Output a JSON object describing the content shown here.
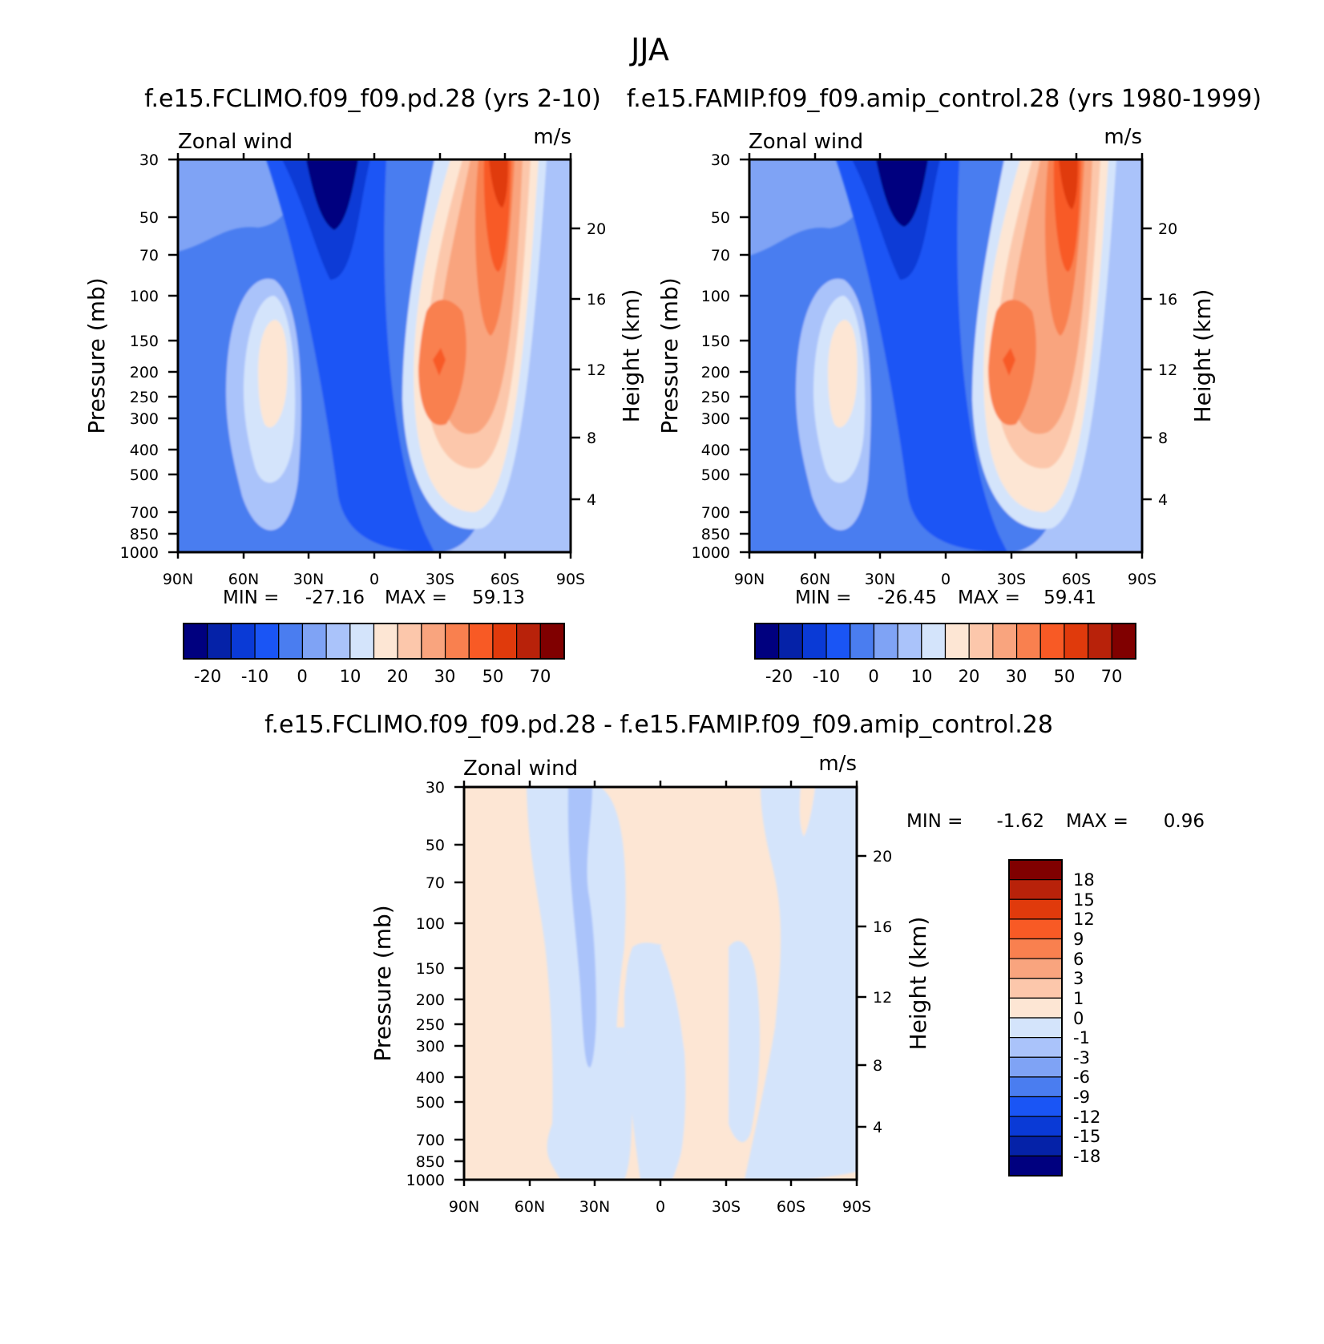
{
  "figure": {
    "season": "JJA"
  },
  "palette": {
    "top": [
      "#00007f",
      "#0522a8",
      "#0a3ad6",
      "#1a55f5",
      "#4a7df0",
      "#7fa3f5",
      "#aac3fa",
      "#d4e4fb",
      "#fde6d4",
      "#fcc7ab",
      "#f9a47e",
      "#f9804f",
      "#f85a25",
      "#e03a0c",
      "#b8220a",
      "#800000"
    ],
    "diff": [
      "#00007f",
      "#0522a8",
      "#0a3ad6",
      "#1a55f5",
      "#4a7df0",
      "#7fa3f5",
      "#aac3fa",
      "#d4e4fb",
      "#fde6d4",
      "#fcc7ab",
      "#f9a47e",
      "#f9804f",
      "#f85a25",
      "#e03a0c",
      "#b8220a",
      "#800000"
    ]
  },
  "chart_data": [
    {
      "type": "heatmap",
      "panel": "left",
      "title": "f.e15.FCLIMO.f09_f09.pd.28 (yrs 2-10)",
      "left_label": "Zonal wind",
      "right_label": "m/s",
      "xlabel": "",
      "ylabel": "Pressure (mb)",
      "y2label": "Height (km)",
      "xticks": [
        "90N",
        "60N",
        "30N",
        "0",
        "30S",
        "60S",
        "90S"
      ],
      "yticks": [
        "30",
        "50",
        "70",
        "100",
        "150",
        "200",
        "250",
        "300",
        "400",
        "500",
        "700",
        "850",
        "1000"
      ],
      "y2ticks": [
        "20",
        "16",
        "12",
        "8",
        "4"
      ],
      "stats": {
        "min_label": "MIN =",
        "min": "-27.16",
        "max_label": "MAX =",
        "max": "59.13"
      },
      "colorbar_labels": [
        "-20",
        "-10",
        "0",
        "10",
        "20",
        "30",
        "50",
        "70"
      ],
      "contour_levels": [
        -25,
        -20,
        -15,
        -10,
        -5,
        0,
        5,
        10,
        15,
        20,
        25,
        30,
        40,
        50,
        60,
        70
      ],
      "features": [
        {
          "name": "easterly stratospheric minimum near 20N",
          "lat": 20,
          "pressure": 30,
          "value": -27
        },
        {
          "name": "subtropical westerly jet near 30S",
          "lat": -30,
          "pressure": 200,
          "value": 40
        },
        {
          "name": "polar night jet near 60S",
          "lat": -60,
          "pressure": 30,
          "value": 59
        }
      ]
    },
    {
      "type": "heatmap",
      "panel": "right",
      "title": "f.e15.FAMIP.f09_f09.amip_control.28 (yrs 1980-1999)",
      "left_label": "Zonal wind",
      "right_label": "m/s",
      "xlabel": "",
      "ylabel": "Pressure (mb)",
      "y2label": "Height (km)",
      "xticks": [
        "90N",
        "60N",
        "30N",
        "0",
        "30S",
        "60S",
        "90S"
      ],
      "yticks": [
        "30",
        "50",
        "70",
        "100",
        "150",
        "200",
        "250",
        "300",
        "400",
        "500",
        "700",
        "850",
        "1000"
      ],
      "y2ticks": [
        "20",
        "16",
        "12",
        "8",
        "4"
      ],
      "stats": {
        "min_label": "MIN =",
        "min": "-26.45",
        "max_label": "MAX =",
        "max": "59.41"
      },
      "colorbar_labels": [
        "-20",
        "-10",
        "0",
        "10",
        "20",
        "30",
        "50",
        "70"
      ],
      "contour_levels": [
        -25,
        -20,
        -15,
        -10,
        -5,
        0,
        5,
        10,
        15,
        20,
        25,
        30,
        40,
        50,
        60,
        70
      ],
      "features": [
        {
          "name": "easterly stratospheric minimum near 20N",
          "lat": 20,
          "pressure": 30,
          "value": -26
        },
        {
          "name": "subtropical westerly jet near 30S",
          "lat": -30,
          "pressure": 200,
          "value": 40
        },
        {
          "name": "polar night jet near 60S",
          "lat": -60,
          "pressure": 30,
          "value": 59
        }
      ]
    },
    {
      "type": "heatmap",
      "panel": "difference",
      "title": "f.e15.FCLIMO.f09_f09.pd.28 - f.e15.FAMIP.f09_f09.amip_control.28",
      "left_label": "Zonal wind",
      "right_label": "m/s",
      "xlabel": "",
      "ylabel": "Pressure (mb)",
      "y2label": "Height (km)",
      "xticks": [
        "90N",
        "60N",
        "30N",
        "0",
        "30S",
        "60S",
        "90S"
      ],
      "yticks": [
        "30",
        "50",
        "70",
        "100",
        "150",
        "200",
        "250",
        "300",
        "400",
        "500",
        "700",
        "850",
        "1000"
      ],
      "y2ticks": [
        "20",
        "16",
        "12",
        "8",
        "4"
      ],
      "stats": {
        "min_label": "MIN =",
        "min": "-1.62",
        "max_label": "MAX =",
        "max": "0.96"
      },
      "colorbar_labels": [
        "18",
        "15",
        "12",
        "9",
        "6",
        "3",
        "1",
        "0",
        "-1",
        "-3",
        "-6",
        "-9",
        "-12",
        "-15",
        "-18"
      ],
      "contour_levels": [
        -18,
        -15,
        -12,
        -9,
        -6,
        -3,
        -1,
        0,
        1,
        3,
        6,
        9,
        12,
        15,
        18
      ]
    }
  ]
}
